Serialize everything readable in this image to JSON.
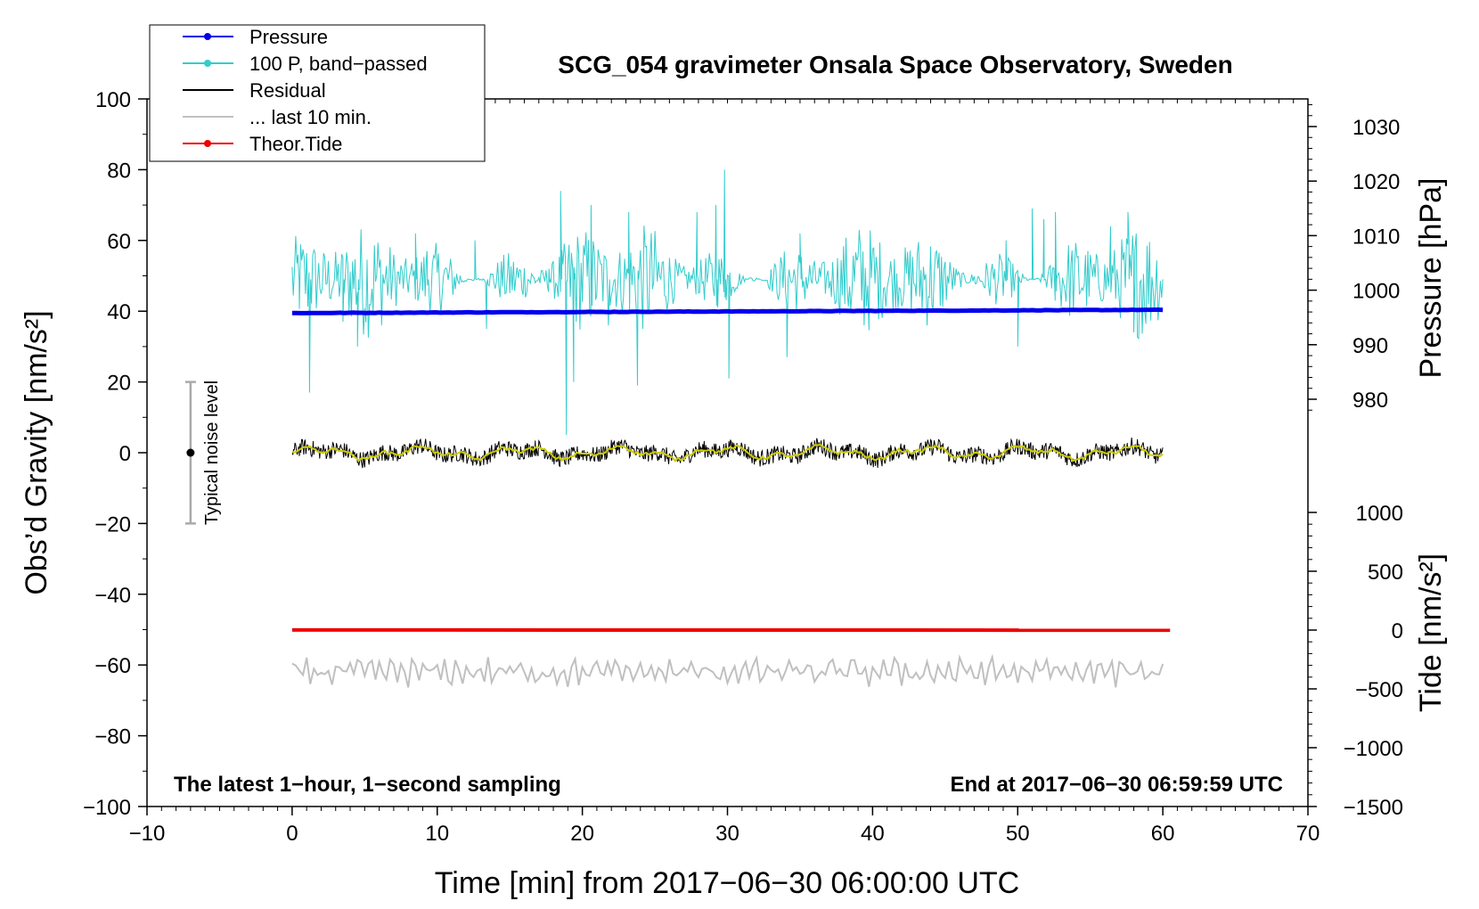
{
  "chart_data": {
    "type": "line",
    "title": "SCG_054 gravimeter Onsala Space Observatory, Sweden",
    "xlabel": "Time [min] from 2017−06−30 06:00:00 UTC",
    "ylabel_left": "Obs’d Gravity [nm/s²]",
    "ylabel_right_top": "Pressure [hPa]",
    "ylabel_right_bottom": "Tide [nm/s²]",
    "xlim": [
      -10,
      70
    ],
    "ylim": [
      -100,
      100
    ],
    "pressure_lim": [
      975.5,
      1035
    ],
    "tide_lim": [
      -1500,
      1000
    ],
    "x_ticks": [
      -10,
      0,
      10,
      20,
      30,
      40,
      50,
      60,
      70
    ],
    "x_tick_labels": [
      "−10",
      "0",
      "10",
      "20",
      "30",
      "40",
      "50",
      "60",
      "70"
    ],
    "y_ticks": [
      -100,
      -80,
      -60,
      -40,
      -20,
      0,
      20,
      40,
      60,
      80,
      100
    ],
    "y_tick_labels": [
      "−100",
      "−80",
      "−60",
      "−40",
      "−20",
      "0",
      "20",
      "40",
      "60",
      "80",
      "100"
    ],
    "pressure_ticks": [
      980,
      990,
      1000,
      1010,
      1020,
      1030
    ],
    "pressure_tick_labels": [
      "980",
      "990",
      "1000",
      "1010",
      "1020",
      "1030"
    ],
    "tide_ticks": [
      -1500,
      -1000,
      -500,
      0,
      500,
      1000
    ],
    "tide_tick_labels": [
      "−1500",
      "−1000",
      "−500",
      "0",
      "500",
      "1000"
    ],
    "grid": false,
    "legend_placement": "top-left",
    "legend": [
      {
        "label": "Pressure",
        "color": "#0000ee",
        "marker": true
      },
      {
        "label": "100 P, band−passed",
        "color": "#33cccc",
        "marker": true
      },
      {
        "label": "Residual",
        "color": "#000000",
        "marker": false
      },
      {
        "label": "... last 10 min.",
        "color": "#c0c0c0",
        "marker": false
      },
      {
        "label": "Theor.Tide",
        "color": "#ee0000",
        "marker": true
      }
    ],
    "annotations": {
      "bottom_left": "The latest 1−hour, 1−second sampling",
      "bottom_right": "End at 2017−06−30 06:59:59 UTC",
      "noise_label": "Typical noise level"
    },
    "noise_bar": {
      "x": -7,
      "center": 0,
      "low": -20,
      "high": 20
    },
    "series": [
      {
        "name": "Pressure",
        "axis": "pressure",
        "color": "#0000ee",
        "x_range": [
          0,
          60
        ],
        "start": 995.8,
        "end": 996.4
      },
      {
        "name": "100 P, band−passed",
        "axis": "gravity",
        "color": "#33cccc",
        "x_range": [
          0,
          60
        ],
        "baseline": 49,
        "amplitude": 8,
        "spikes": [
          [
            0.4,
            56
          ],
          [
            1.2,
            17
          ],
          [
            3.5,
            37
          ],
          [
            4.5,
            30
          ],
          [
            8.5,
            62
          ],
          [
            9.3,
            57
          ],
          [
            12.6,
            60
          ],
          [
            13.4,
            35
          ],
          [
            17.7,
            52
          ],
          [
            18.5,
            74
          ],
          [
            18.9,
            5
          ],
          [
            19.4,
            20
          ],
          [
            20.6,
            70
          ],
          [
            21.8,
            36
          ],
          [
            23.2,
            68
          ],
          [
            23.8,
            19
          ],
          [
            27.9,
            68
          ],
          [
            28.5,
            55
          ],
          [
            29.2,
            70
          ],
          [
            29.8,
            80
          ],
          [
            30.1,
            21
          ],
          [
            34.1,
            27
          ],
          [
            35.0,
            62
          ],
          [
            49.2,
            60
          ],
          [
            50.0,
            30
          ],
          [
            51.0,
            69
          ],
          [
            51.8,
            66
          ],
          [
            52.6,
            68
          ],
          [
            56.4,
            64
          ],
          [
            57.6,
            68
          ],
          [
            58.0,
            34
          ]
        ]
      },
      {
        "name": "Residual",
        "axis": "gravity",
        "color": "#000000",
        "x_range": [
          0,
          60
        ],
        "baseline": 0,
        "amplitude": 2.4
      },
      {
        "name": "Smoothed residual",
        "axis": "gravity",
        "color": "#cccc00",
        "x_range": [
          0,
          60
        ],
        "baseline": 0,
        "amplitude": 1
      },
      {
        "name": "... last 10 min.",
        "axis": "gravity",
        "color": "#c0c0c0",
        "x_range": [
          0,
          60
        ],
        "baseline": -62,
        "amplitude": 2.5
      },
      {
        "name": "Theor.Tide",
        "axis": "tide",
        "color": "#ee0000",
        "x_range": [
          0,
          60.5
        ],
        "start": 1,
        "end": -1
      }
    ]
  }
}
